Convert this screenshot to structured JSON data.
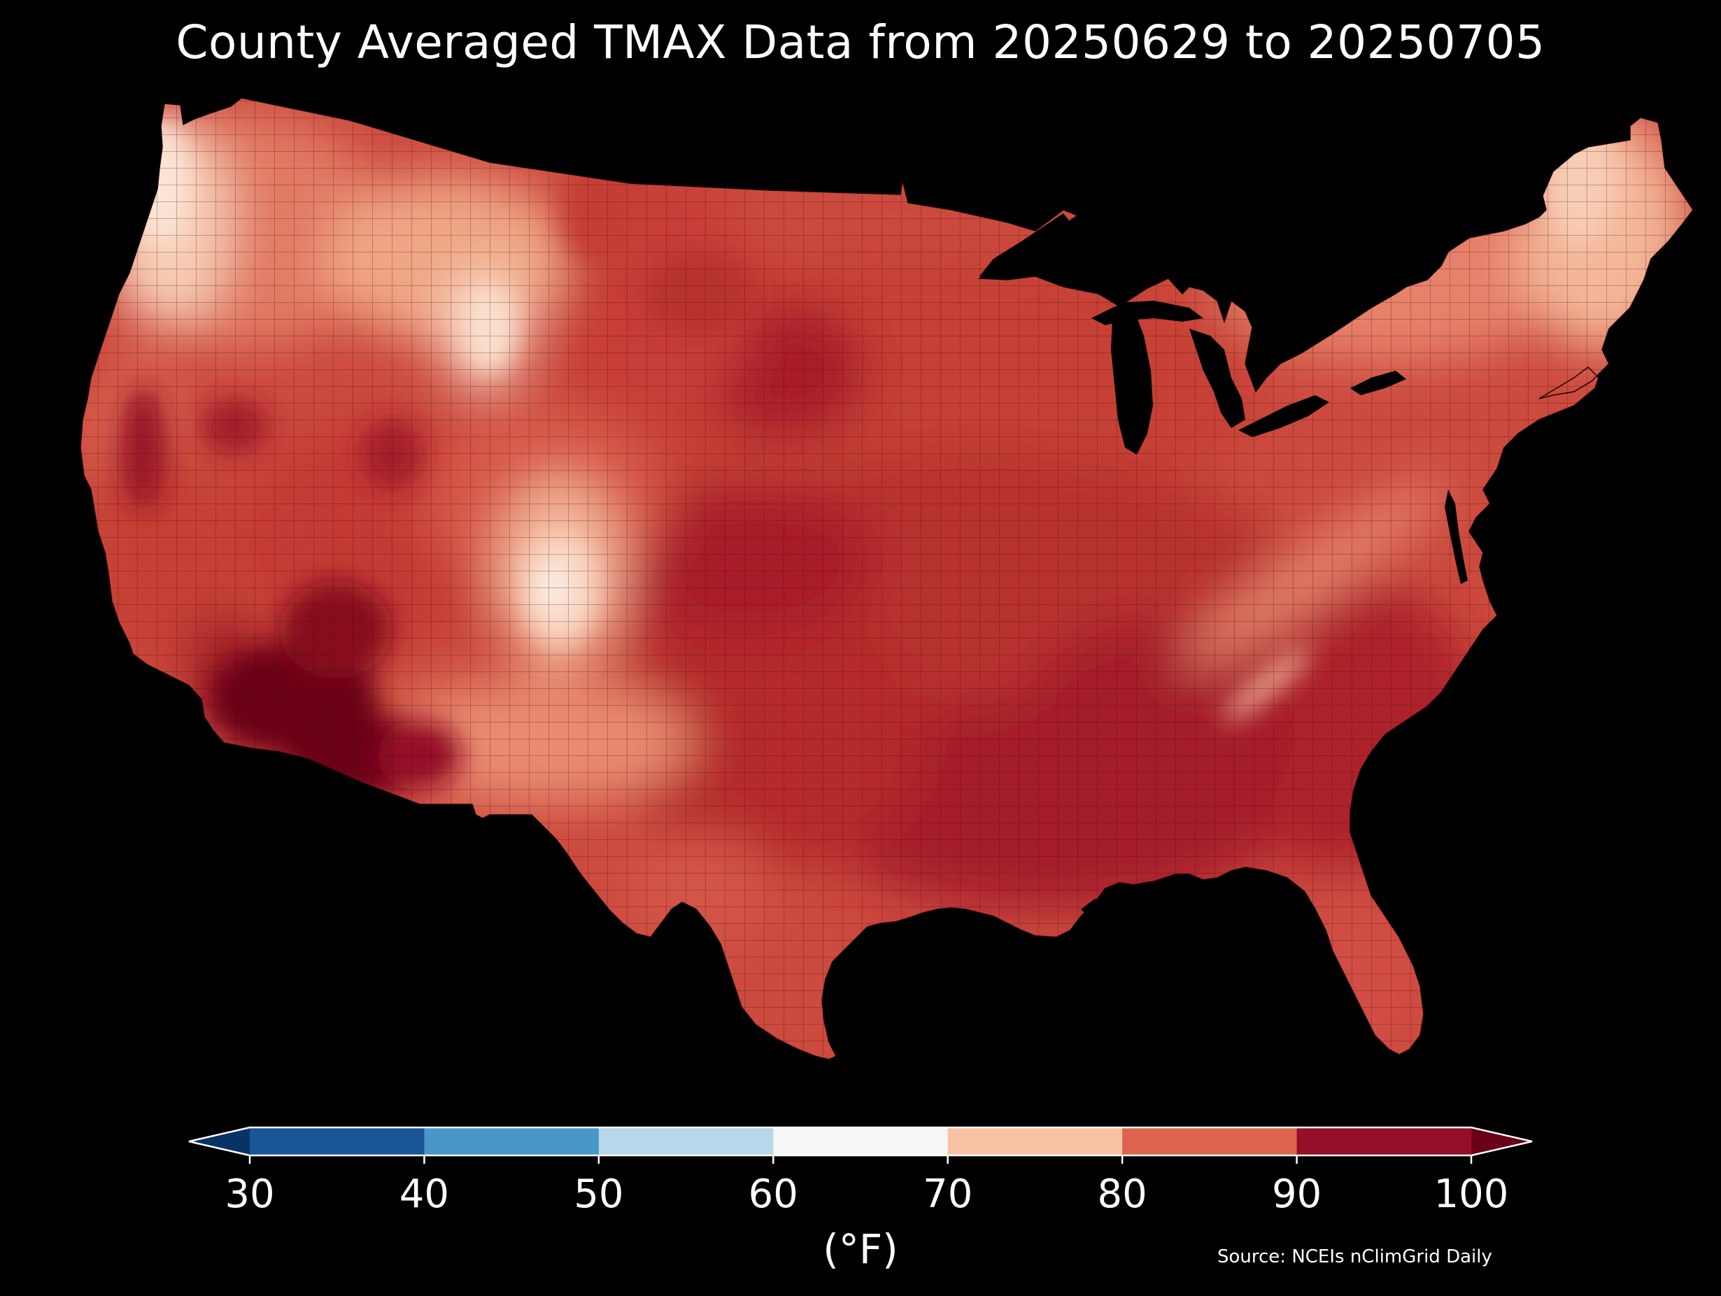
{
  "title": "County Averaged TMAX Data from 20250629 to 20250705",
  "colorbar": {
    "unit": "(°F)",
    "ticks": [
      "30",
      "40",
      "50",
      "60",
      "70",
      "80",
      "90",
      "100"
    ],
    "bins": [
      {
        "from": 30,
        "to": 40,
        "color": "#1a5598"
      },
      {
        "from": 40,
        "to": 50,
        "color": "#4997c9"
      },
      {
        "from": 50,
        "to": 60,
        "color": "#b7d7ea"
      },
      {
        "from": 60,
        "to": 70,
        "color": "#f6f6f6"
      },
      {
        "from": 70,
        "to": 80,
        "color": "#f9c2a4"
      },
      {
        "from": 80,
        "to": 90,
        "color": "#dd6550"
      },
      {
        "from": 90,
        "to": 100,
        "color": "#940f27"
      }
    ],
    "under_color": "#083366",
    "over_color": "#6a0018"
  },
  "source": "Source: NCEIs nClimGrid Daily",
  "map": {
    "region": "Contiguous United States",
    "regional_tmax_f": [
      {
        "region": "Desert Southwest (AZ / SE CA)",
        "approx_tmax": 100
      },
      {
        "region": "Central Valley CA",
        "approx_tmax": 92
      },
      {
        "region": "Southern Plains / Lower Mississippi",
        "approx_tmax": 92
      },
      {
        "region": "Southeast",
        "approx_tmax": 90
      },
      {
        "region": "Central Plains (KS)",
        "approx_tmax": 92
      },
      {
        "region": "Midwest",
        "approx_tmax": 86
      },
      {
        "region": "Northern Plains",
        "approx_tmax": 86
      },
      {
        "region": "Great Basin (NV / UT)",
        "approx_tmax": 88
      },
      {
        "region": "Pacific Northwest coast",
        "approx_tmax": 70
      },
      {
        "region": "Northern Rockies",
        "approx_tmax": 76
      },
      {
        "region": "Colorado high Rockies",
        "approx_tmax": 68
      },
      {
        "region": "Appalachians",
        "approx_tmax": 78
      },
      {
        "region": "Northeast / New England",
        "approx_tmax": 78
      },
      {
        "region": "Northern Maine",
        "approx_tmax": 74
      }
    ]
  }
}
